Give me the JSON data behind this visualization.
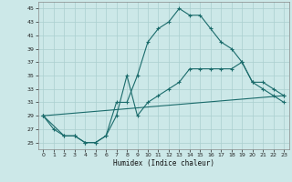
{
  "xlabel": "Humidex (Indice chaleur)",
  "background_color": "#cce8e8",
  "grid_color": "#aacfcf",
  "line_color": "#1a6b6b",
  "xlim": [
    -0.5,
    23.5
  ],
  "ylim": [
    24,
    46
  ],
  "yticks": [
    25,
    27,
    29,
    31,
    33,
    35,
    37,
    39,
    41,
    43,
    45
  ],
  "xticks": [
    0,
    1,
    2,
    3,
    4,
    5,
    6,
    7,
    8,
    9,
    10,
    11,
    12,
    13,
    14,
    15,
    16,
    17,
    18,
    19,
    20,
    21,
    22,
    23
  ],
  "line1_x": [
    0,
    1,
    2,
    3,
    4,
    5,
    6,
    7,
    8,
    9,
    10,
    11,
    12,
    13,
    14,
    15,
    16,
    17,
    18,
    19,
    20,
    21,
    22,
    23
  ],
  "line1_y": [
    29,
    27,
    26,
    26,
    25,
    25,
    26,
    31,
    31,
    35,
    40,
    42,
    43,
    45,
    44,
    44,
    42,
    40,
    39,
    37,
    34,
    33,
    32,
    31
  ],
  "line2_x": [
    0,
    2,
    3,
    4,
    5,
    6,
    7,
    8,
    9,
    10,
    11,
    12,
    13,
    14,
    15,
    16,
    17,
    18,
    19,
    20,
    21,
    22,
    23
  ],
  "line2_y": [
    29,
    26,
    26,
    25,
    25,
    26,
    29,
    35,
    29,
    31,
    32,
    33,
    34,
    36,
    36,
    36,
    36,
    36,
    37,
    34,
    34,
    33,
    32
  ],
  "line3_x": [
    0,
    23
  ],
  "line3_y": [
    29,
    32
  ]
}
